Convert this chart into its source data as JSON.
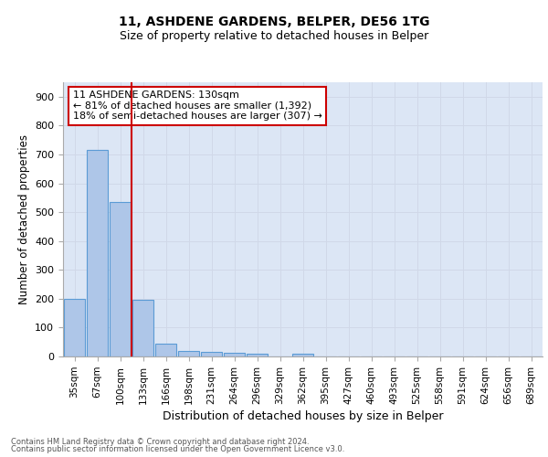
{
  "title1": "11, ASHDENE GARDENS, BELPER, DE56 1TG",
  "title2": "Size of property relative to detached houses in Belper",
  "xlabel": "Distribution of detached houses by size in Belper",
  "ylabel": "Number of detached properties",
  "footnote1": "Contains HM Land Registry data © Crown copyright and database right 2024.",
  "footnote2": "Contains public sector information licensed under the Open Government Licence v3.0.",
  "bar_labels": [
    "35sqm",
    "67sqm",
    "100sqm",
    "133sqm",
    "166sqm",
    "198sqm",
    "231sqm",
    "264sqm",
    "296sqm",
    "329sqm",
    "362sqm",
    "395sqm",
    "427sqm",
    "460sqm",
    "493sqm",
    "525sqm",
    "558sqm",
    "591sqm",
    "624sqm",
    "656sqm",
    "689sqm"
  ],
  "bar_values": [
    200,
    715,
    535,
    195,
    45,
    20,
    15,
    12,
    10,
    0,
    8,
    0,
    0,
    0,
    0,
    0,
    0,
    0,
    0,
    0,
    0
  ],
  "bar_color": "#aec6e8",
  "bar_edge_color": "#5b9bd5",
  "vline_color": "#cc0000",
  "vline_x": 2.5,
  "ylim": [
    0,
    950
  ],
  "yticks": [
    0,
    100,
    200,
    300,
    400,
    500,
    600,
    700,
    800,
    900
  ],
  "annotation_text": "11 ASHDENE GARDENS: 130sqm\n← 81% of detached houses are smaller (1,392)\n18% of semi-detached houses are larger (307) →",
  "annotation_box_color": "#cc0000",
  "grid_color": "#d0d8e8",
  "background_color": "#dce6f5"
}
